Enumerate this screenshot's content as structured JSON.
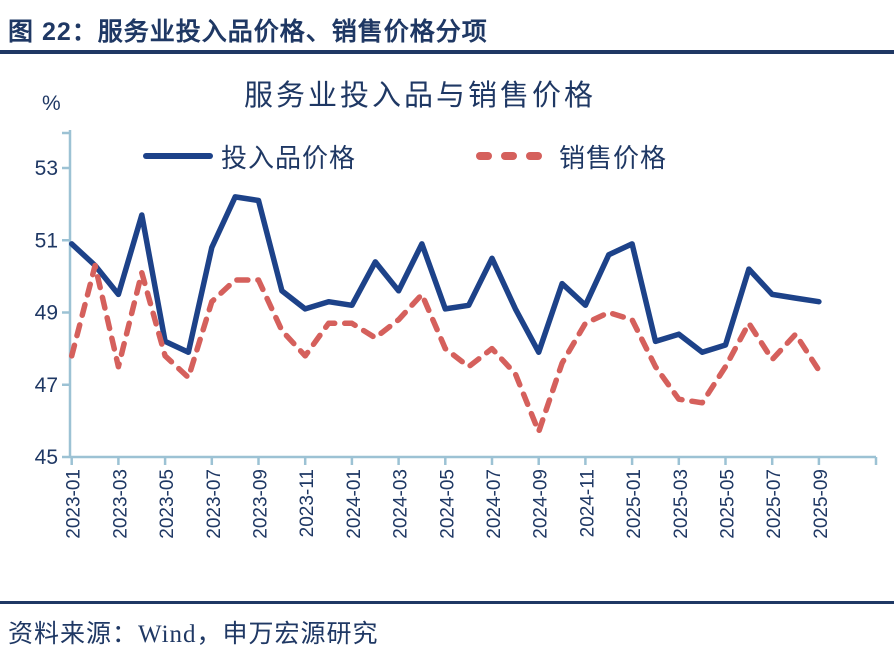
{
  "figure_header": {
    "title": "图 22：服务业投入品价格、销售价格分项"
  },
  "source": {
    "text": "资料来源：Wind，申万宏源研究"
  },
  "chart_data": {
    "type": "line",
    "title": "服务业投入品与销售价格",
    "unit_label": "%",
    "ylim": [
      45,
      53
    ],
    "y_ticks": [
      45,
      47,
      49,
      51,
      53
    ],
    "grid": false,
    "legend_position": "top",
    "x_tick_every": 2,
    "x": [
      "2023-01",
      "2023-02",
      "2023-03",
      "2023-04",
      "2023-05",
      "2023-06",
      "2023-07",
      "2023-08",
      "2023-09",
      "2023-10",
      "2023-11",
      "2023-12",
      "2024-01",
      "2024-02",
      "2024-03",
      "2024-04",
      "2024-05",
      "2024-06",
      "2024-07",
      "2024-08",
      "2024-09",
      "2024-10",
      "2024-11",
      "2024-12",
      "2025-01",
      "2025-02",
      "2025-03",
      "2025-04",
      "2025-05",
      "2025-06",
      "2025-07",
      "2025-08",
      "2025-09"
    ],
    "series": [
      {
        "name": "投入品价格",
        "style": "solid",
        "color": "#1D4289",
        "values": [
          50.9,
          50.3,
          49.5,
          51.7,
          48.2,
          47.9,
          50.8,
          52.2,
          52.1,
          49.6,
          49.1,
          49.3,
          49.2,
          50.4,
          49.6,
          50.9,
          49.1,
          49.2,
          50.5,
          49.1,
          47.9,
          49.8,
          49.2,
          50.6,
          50.9,
          48.2,
          48.4,
          47.9,
          48.1,
          50.2,
          49.5,
          49.4,
          49.3
        ]
      },
      {
        "name": "销售价格",
        "style": "dashed",
        "color": "#D5605C",
        "values": [
          47.8,
          50.3,
          47.5,
          50.1,
          47.8,
          47.2,
          49.3,
          49.9,
          49.9,
          48.5,
          47.8,
          48.7,
          48.7,
          48.3,
          48.8,
          49.5,
          48.0,
          47.5,
          48.0,
          47.3,
          45.7,
          47.6,
          48.7,
          49.0,
          48.8,
          47.5,
          46.6,
          46.5,
          47.5,
          48.7,
          47.7,
          48.4,
          47.4
        ]
      }
    ],
    "colors": {
      "axis": "#9CC2D4",
      "text": "#1F3864"
    }
  }
}
